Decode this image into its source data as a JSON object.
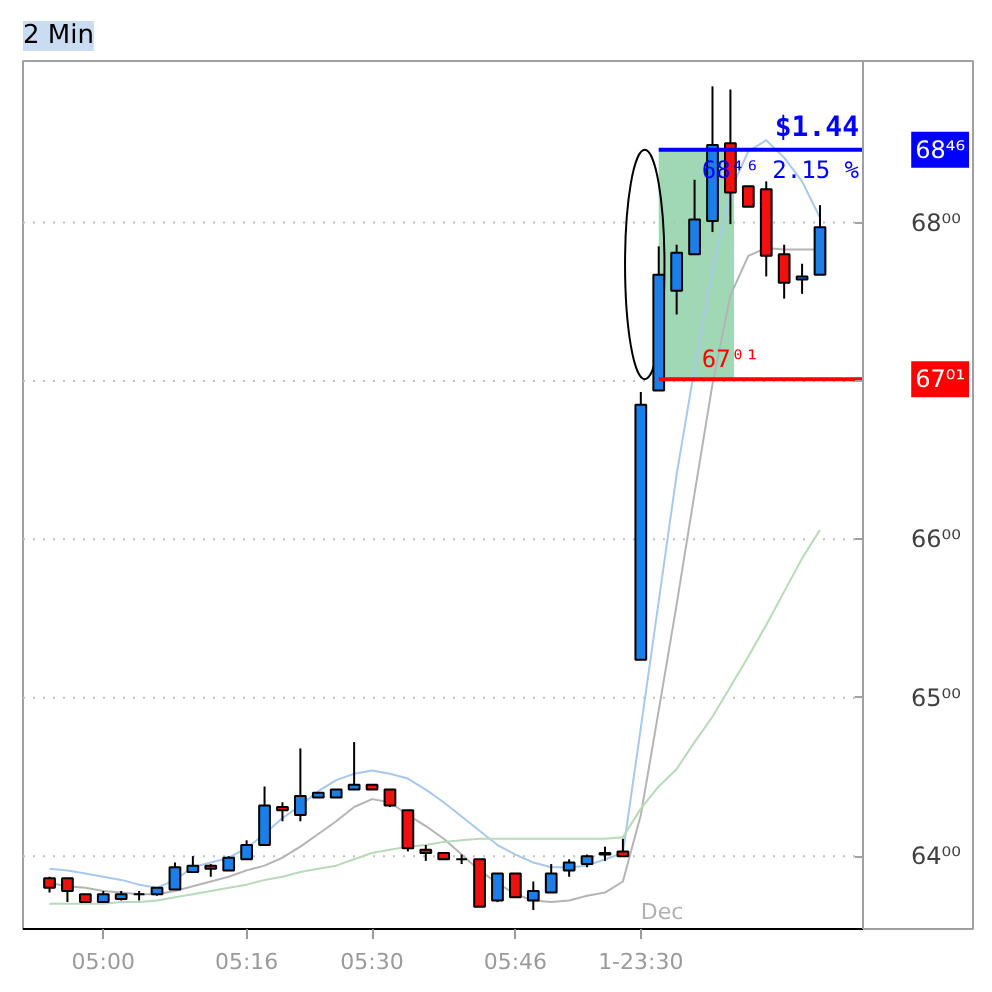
{
  "chart_data": {
    "type": "candlestick",
    "title": "2 Min",
    "categories": [
      null,
      null,
      null,
      "05:00",
      null,
      null,
      null,
      null,
      null,
      null,
      null,
      "05:16",
      null,
      null,
      null,
      null,
      null,
      null,
      "05:30",
      null,
      null,
      null,
      null,
      null,
      null,
      null,
      "05:46",
      null,
      null,
      null,
      null,
      null,
      null,
      "1-23:30",
      null,
      null,
      null,
      null,
      null,
      null,
      null,
      null,
      null,
      null
    ],
    "ohlc": [
      [
        63.86,
        63.87,
        63.77,
        63.8
      ],
      [
        63.86,
        63.86,
        63.71,
        63.78
      ],
      [
        63.76,
        63.76,
        63.71,
        63.71
      ],
      [
        63.71,
        63.78,
        63.71,
        63.76
      ],
      [
        63.73,
        63.78,
        63.72,
        63.76
      ],
      [
        63.76,
        63.78,
        63.72,
        63.76
      ],
      [
        63.76,
        63.8,
        63.75,
        63.8
      ],
      [
        63.79,
        63.96,
        63.79,
        63.93
      ],
      [
        63.9,
        64.0,
        63.9,
        63.94
      ],
      [
        63.94,
        63.95,
        63.87,
        63.92
      ],
      [
        63.91,
        64.0,
        63.91,
        63.99
      ],
      [
        63.98,
        64.1,
        63.98,
        64.07
      ],
      [
        64.07,
        64.44,
        64.07,
        64.32
      ],
      [
        64.31,
        64.34,
        64.22,
        64.29
      ],
      [
        64.26,
        64.68,
        64.22,
        64.38
      ],
      [
        64.37,
        64.4,
        64.37,
        64.4
      ],
      [
        64.37,
        64.42,
        64.37,
        64.42
      ],
      [
        64.42,
        64.72,
        64.42,
        64.45
      ],
      [
        64.45,
        64.45,
        64.42,
        64.42
      ],
      [
        64.42,
        64.42,
        64.31,
        64.32
      ],
      [
        64.29,
        64.29,
        64.03,
        64.05
      ],
      [
        64.04,
        64.07,
        63.97,
        64.02
      ],
      [
        64.02,
        64.02,
        63.98,
        63.98
      ],
      [
        63.98,
        64.01,
        63.95,
        63.98
      ],
      [
        63.98,
        63.98,
        63.68,
        63.68
      ],
      [
        63.72,
        63.89,
        63.71,
        63.89
      ],
      [
        63.89,
        63.89,
        63.74,
        63.74
      ],
      [
        63.72,
        63.84,
        63.66,
        63.78
      ],
      [
        63.77,
        63.95,
        63.77,
        63.89
      ],
      [
        63.91,
        63.98,
        63.87,
        63.96
      ],
      [
        63.95,
        64.01,
        63.93,
        64.0
      ],
      [
        64.01,
        64.06,
        63.97,
        64.02
      ],
      [
        64.03,
        64.11,
        64.0,
        64.0
      ],
      [
        65.24,
        66.93,
        65.24,
        66.85
      ],
      [
        66.94,
        67.85,
        66.94,
        67.67
      ],
      [
        67.57,
        67.86,
        67.42,
        67.81
      ],
      [
        67.8,
        68.27,
        67.8,
        68.02
      ],
      [
        68.01,
        68.86,
        67.94,
        68.49
      ],
      [
        68.5,
        68.84,
        67.99,
        68.19
      ],
      [
        68.23,
        68.23,
        68.1,
        68.1
      ],
      [
        68.21,
        68.26,
        67.66,
        67.79
      ],
      [
        67.8,
        67.86,
        67.52,
        67.62
      ],
      [
        67.64,
        67.74,
        67.55,
        67.66
      ],
      [
        67.67,
        68.11,
        67.67,
        67.97
      ]
    ],
    "colors": [
      "#f01010",
      "#f01010",
      "#f01010",
      "#1c7fe8",
      "#1c7fe8",
      "#000000",
      "#1c7fe8",
      "#1c7fe8",
      "#1c7fe8",
      "#f01010",
      "#1c7fe8",
      "#1c7fe8",
      "#1c7fe8",
      "#f01010",
      "#1c7fe8",
      "#1c7fe8",
      "#1c7fe8",
      "#1c7fe8",
      "#f01010",
      "#f01010",
      "#f01010",
      "#f01010",
      "#f01010",
      "#000000",
      "#f01010",
      "#1c7fe8",
      "#f01010",
      "#1c7fe8",
      "#1c7fe8",
      "#1c7fe8",
      "#1c7fe8",
      "#1c7fe8",
      "#f01010",
      "#1c7fe8",
      "#1c7fe8",
      "#1c7fe8",
      "#1c7fe8",
      "#1c7fe8",
      "#f01010",
      "#f01010",
      "#f01010",
      "#f01010",
      "#1c7fe8",
      "#1c7fe8"
    ],
    "series": [
      {
        "type": "line",
        "color": "#a8c8ec",
        "values": [
          63.92,
          63.91,
          63.89,
          63.87,
          63.85,
          63.82,
          63.8,
          63.85,
          63.93,
          63.96,
          63.99,
          64.05,
          64.14,
          64.24,
          64.32,
          64.41,
          64.48,
          64.52,
          64.54,
          64.52,
          64.49,
          64.42,
          64.34,
          64.25,
          64.16,
          64.07,
          64.01,
          63.96,
          63.93,
          63.93,
          63.94,
          63.98,
          64.02,
          64.81,
          65.61,
          66.41,
          67.08,
          67.7,
          68.2,
          68.45,
          68.52,
          68.41,
          68.26,
          68.03
        ]
      },
      {
        "type": "line",
        "color": "#b4b4b4",
        "values": [
          63.83,
          63.81,
          63.8,
          63.78,
          63.77,
          63.76,
          63.76,
          63.78,
          63.81,
          63.84,
          63.87,
          63.91,
          63.94,
          63.99,
          64.06,
          64.14,
          64.22,
          64.31,
          64.36,
          64.34,
          64.26,
          64.19,
          64.11,
          64.01,
          63.91,
          63.83,
          63.76,
          63.72,
          63.71,
          63.72,
          63.75,
          63.77,
          63.84,
          64.26,
          64.92,
          65.59,
          66.29,
          66.98,
          67.54,
          67.79,
          67.84,
          67.83,
          67.83,
          67.83
        ]
      },
      {
        "type": "line",
        "color": "#b8dab8",
        "values": [
          63.7,
          63.7,
          63.7,
          63.7,
          63.71,
          63.71,
          63.72,
          63.74,
          63.76,
          63.78,
          63.8,
          63.82,
          63.85,
          63.87,
          63.9,
          63.92,
          63.94,
          63.98,
          64.02,
          64.04,
          64.06,
          64.07,
          64.09,
          64.1,
          64.11,
          64.11,
          64.11,
          64.11,
          64.11,
          64.11,
          64.11,
          64.11,
          64.12,
          64.3,
          64.44,
          64.55,
          64.72,
          64.88,
          65.07,
          65.26,
          65.46,
          65.67,
          65.88,
          66.06
        ]
      }
    ],
    "ylim": [
      63.54,
      69.02
    ],
    "yticks": [
      {
        "value": 64,
        "label": "64⁰⁰"
      },
      {
        "value": 65,
        "label": "65⁰⁰"
      },
      {
        "value": 66,
        "label": "66⁰⁰"
      },
      {
        "value": 67,
        "label": null
      },
      {
        "value": 68,
        "label": "68⁰⁰"
      }
    ],
    "grid": "y",
    "ref_lines": [
      {
        "axis": "y",
        "value": 68.46,
        "label": "68⁴⁶",
        "color": "#0000ff"
      },
      {
        "axis": "y",
        "value": 67.01,
        "label": "67⁰¹",
        "color": "#ff0000"
      }
    ],
    "bands": [
      {
        "axis": "y",
        "from": 67.01,
        "to": 68.46,
        "color": "#8fd0a8"
      }
    ],
    "annotations": [
      {
        "text": "$1.44",
        "y": 68.46
      },
      {
        "text": "2.15 %",
        "y": 68.46
      },
      {
        "text": "68⁴⁶",
        "y": 68.46
      },
      {
        "text": "67⁰¹",
        "y": 67.01
      },
      "Dec"
    ]
  }
}
